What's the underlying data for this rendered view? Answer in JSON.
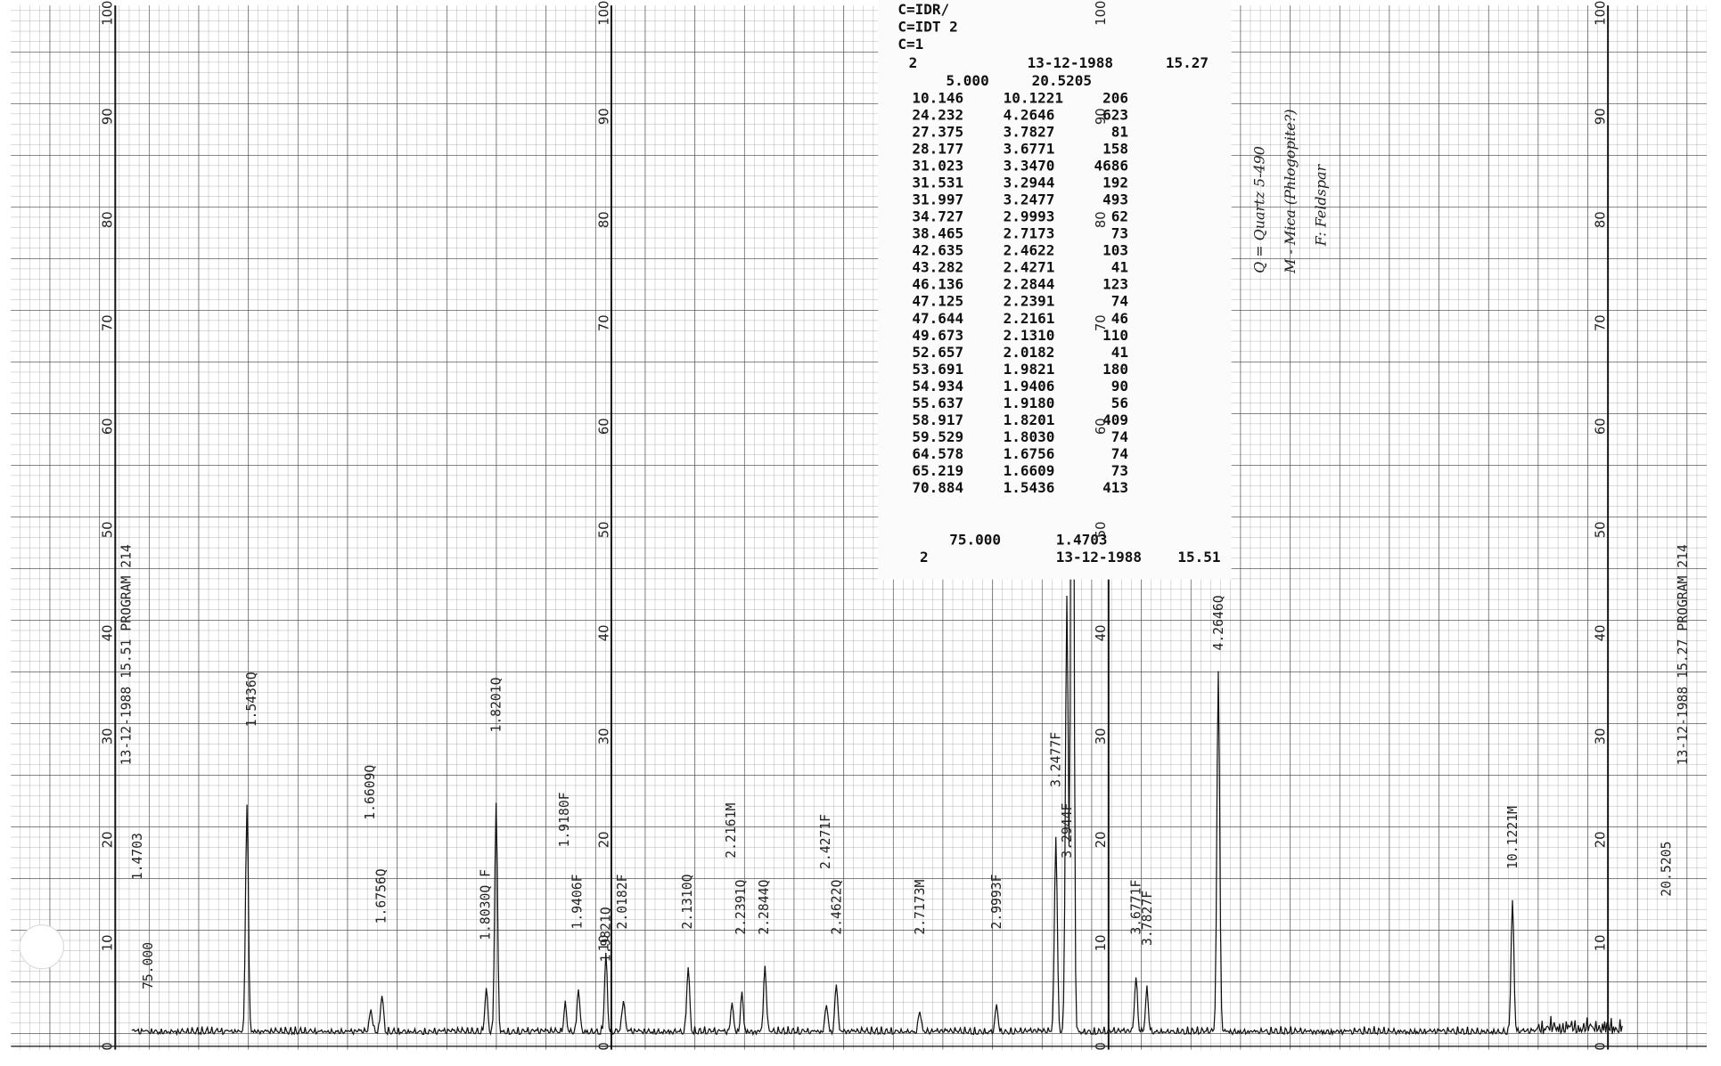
{
  "printout": {
    "header": [
      "C=IDR/",
      "C=IDT 2",
      "C=1"
    ],
    "start": {
      "id": "2",
      "date": "13-12-1988",
      "time": "15.27"
    },
    "range_start": {
      "angle": "5.000",
      "d": "20.5205"
    },
    "rows": [
      [
        "10.146",
        "10.1221",
        "206"
      ],
      [
        "24.232",
        "4.2646",
        "623"
      ],
      [
        "27.375",
        "3.7827",
        "81"
      ],
      [
        "28.177",
        "3.6771",
        "158"
      ],
      [
        "31.023",
        "3.3470",
        "4686"
      ],
      [
        "31.531",
        "3.2944",
        "192"
      ],
      [
        "31.997",
        "3.2477",
        "493"
      ],
      [
        "34.727",
        "2.9993",
        "62"
      ],
      [
        "38.465",
        "2.7173",
        "73"
      ],
      [
        "42.635",
        "2.4622",
        "103"
      ],
      [
        "43.282",
        "2.4271",
        "41"
      ],
      [
        "46.136",
        "2.2844",
        "123"
      ],
      [
        "47.125",
        "2.2391",
        "74"
      ],
      [
        "47.644",
        "2.2161",
        "46"
      ],
      [
        "49.673",
        "2.1310",
        "110"
      ],
      [
        "52.657",
        "2.0182",
        "41"
      ],
      [
        "53.691",
        "1.9821",
        "180"
      ],
      [
        "54.934",
        "1.9406",
        "90"
      ],
      [
        "55.637",
        "1.9180",
        "56"
      ],
      [
        "58.917",
        "1.8201",
        "409"
      ],
      [
        "59.529",
        "1.8030",
        "74"
      ],
      [
        "64.578",
        "1.6756",
        "74"
      ],
      [
        "65.219",
        "1.6609",
        "73"
      ],
      [
        "70.884",
        "1.5436",
        "413"
      ]
    ],
    "range_end": {
      "angle": "75.000",
      "d": "1.4703"
    },
    "stop": {
      "id": "2",
      "date": "13-12-1988",
      "time": "15.51"
    }
  },
  "scale": [
    "100",
    "90",
    "80",
    "70",
    "60",
    "50",
    "40",
    "30",
    "20",
    "10",
    "0"
  ],
  "margin_left": {
    "angle": "75.000",
    "d": "1.4703",
    "stamp": "13-12-1988 15.51 PROGRAM 214"
  },
  "margin_right": {
    "d": "20.5205",
    "stamp": "13-12-1988 15.27 PROGRAM 214"
  },
  "legend": [
    "Q = Quartz 5-490",
    "M - Mica (Phlogopite?)",
    "F: Feldspar"
  ],
  "peak_labels": [
    "1.5436Q",
    "1.6609Q",
    "1.6756Q",
    "1.8030Q F",
    "1.8201Q",
    "1.9180F",
    "1.9406F",
    "1.9821Q",
    "2.0182F",
    "2.1310Q",
    "2.2161M",
    "2.2391Q",
    "2.2844Q",
    "2.4271F",
    "2.4622Q",
    "2.7173M",
    "2.9993F",
    "3.2477F",
    "3.2944F",
    "3.6771F",
    "3.7827F",
    "4.2646Q",
    "10.1221M"
  ]
}
